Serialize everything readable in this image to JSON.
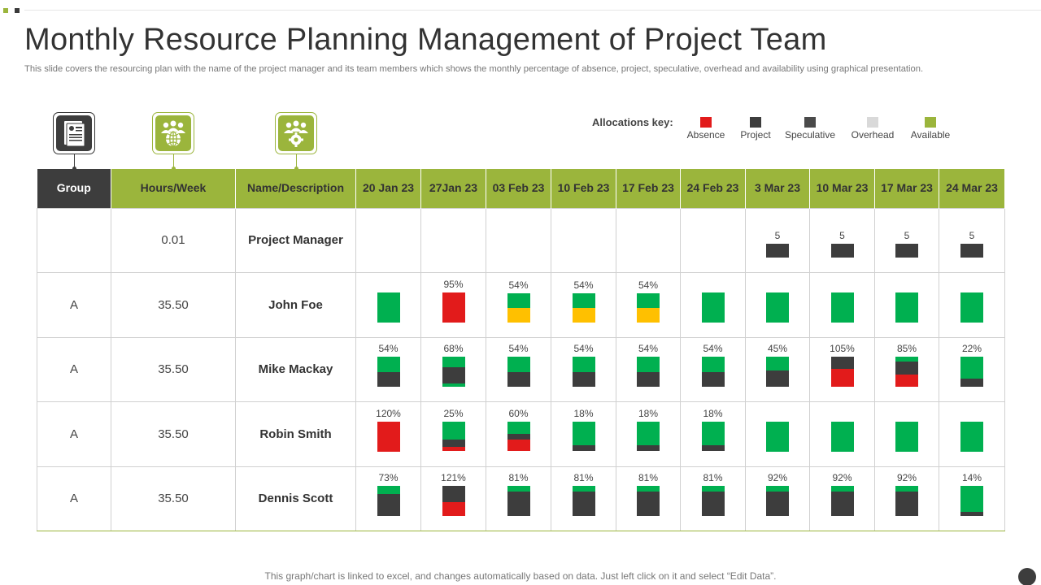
{
  "title": "Monthly Resource Planning Management of Project Team",
  "subtitle": "This slide covers the resourcing plan with the name of the project manager and its team members which shows the monthly percentage of absence, project, speculative, overhead and availability using graphical presentation.",
  "header_icons": [
    "document-icon",
    "team-globe-icon",
    "team-settings-icon"
  ],
  "allocation_key": {
    "label": "Allocations key:",
    "items": [
      {
        "name": "Absence",
        "color": "#e21b1b"
      },
      {
        "name": "Project",
        "color": "#3d3d3d"
      },
      {
        "name": "Speculative",
        "color": "#4a4a4a"
      },
      {
        "name": "Overhead",
        "color": "#d9d9d9"
      },
      {
        "name": "Available",
        "color": "#9bb53c"
      }
    ]
  },
  "colors": {
    "accent": "#9bb53c",
    "dark": "#3d3d3d",
    "segments": {
      "green": "#00b050",
      "dark": "#3d3d3d",
      "red": "#e21b1b",
      "yellow": "#ffc000"
    }
  },
  "table": {
    "columns": [
      "Group",
      "Hours/Week",
      "Name/Description",
      "20 Jan 23",
      "27Jan 23",
      "03 Feb 23",
      "10 Feb 23",
      "17 Feb 23",
      "24 Feb 23",
      "3 Mar 23",
      "10 Mar 23",
      "17 Mar 23",
      "24 Mar 23"
    ],
    "rows": [
      {
        "group": "",
        "hours": "0.01",
        "name": "Project Manager",
        "cells": [
          null,
          null,
          null,
          null,
          null,
          null,
          {
            "label": "5",
            "segments": [
              {
                "c": "dark",
                "v": 0.45
              }
            ]
          },
          {
            "label": "5",
            "segments": [
              {
                "c": "dark",
                "v": 0.45
              }
            ]
          },
          {
            "label": "5",
            "segments": [
              {
                "c": "dark",
                "v": 0.45
              }
            ]
          },
          {
            "label": "5",
            "segments": [
              {
                "c": "dark",
                "v": 0.45
              }
            ]
          }
        ]
      },
      {
        "group": "A",
        "hours": "35.50",
        "name": "John Foe",
        "cells": [
          {
            "label": "",
            "segments": [
              {
                "c": "green",
                "v": 1.0
              }
            ]
          },
          {
            "label": "95%",
            "segments": [
              {
                "c": "red",
                "v": 1.0
              }
            ]
          },
          {
            "label": "54%",
            "segments": [
              {
                "c": "green",
                "v": 0.5
              },
              {
                "c": "yellow",
                "v": 0.46
              }
            ]
          },
          {
            "label": "54%",
            "segments": [
              {
                "c": "green",
                "v": 0.5
              },
              {
                "c": "yellow",
                "v": 0.46
              }
            ]
          },
          {
            "label": "54%",
            "segments": [
              {
                "c": "green",
                "v": 0.5
              },
              {
                "c": "yellow",
                "v": 0.46
              }
            ]
          },
          {
            "label": "",
            "segments": [
              {
                "c": "green",
                "v": 1.0
              }
            ]
          },
          {
            "label": "",
            "segments": [
              {
                "c": "green",
                "v": 1.0
              }
            ]
          },
          {
            "label": "",
            "segments": [
              {
                "c": "green",
                "v": 1.0
              }
            ]
          },
          {
            "label": "",
            "segments": [
              {
                "c": "green",
                "v": 1.0
              }
            ]
          },
          {
            "label": "",
            "segments": [
              {
                "c": "green",
                "v": 1.0
              }
            ]
          }
        ]
      },
      {
        "group": "A",
        "hours": "35.50",
        "name": "Mike Mackay",
        "cells": [
          {
            "label": "54%",
            "segments": [
              {
                "c": "green",
                "v": 0.5
              },
              {
                "c": "dark",
                "v": 0.5
              }
            ]
          },
          {
            "label": "68%",
            "segments": [
              {
                "c": "green",
                "v": 0.35
              },
              {
                "c": "dark",
                "v": 0.55
              },
              {
                "c": "green",
                "v": 0.1
              }
            ]
          },
          {
            "label": "54%",
            "segments": [
              {
                "c": "green",
                "v": 0.5
              },
              {
                "c": "dark",
                "v": 0.5
              }
            ]
          },
          {
            "label": "54%",
            "segments": [
              {
                "c": "green",
                "v": 0.5
              },
              {
                "c": "dark",
                "v": 0.5
              }
            ]
          },
          {
            "label": "54%",
            "segments": [
              {
                "c": "green",
                "v": 0.5
              },
              {
                "c": "dark",
                "v": 0.5
              }
            ]
          },
          {
            "label": "54%",
            "segments": [
              {
                "c": "green",
                "v": 0.5
              },
              {
                "c": "dark",
                "v": 0.5
              }
            ]
          },
          {
            "label": "45%",
            "segments": [
              {
                "c": "green",
                "v": 0.45
              },
              {
                "c": "dark",
                "v": 0.55
              }
            ]
          },
          {
            "label": "105%",
            "segments": [
              {
                "c": "dark",
                "v": 0.4
              },
              {
                "c": "red",
                "v": 0.6
              }
            ]
          },
          {
            "label": "85%",
            "segments": [
              {
                "c": "green",
                "v": 0.15
              },
              {
                "c": "dark",
                "v": 0.45
              },
              {
                "c": "red",
                "v": 0.4
              }
            ]
          },
          {
            "label": "22%",
            "segments": [
              {
                "c": "green",
                "v": 0.72
              },
              {
                "c": "dark",
                "v": 0.28
              }
            ]
          }
        ]
      },
      {
        "group": "A",
        "hours": "35.50",
        "name": "Robin Smith",
        "cells": [
          {
            "label": "120%",
            "segments": [
              {
                "c": "red",
                "v": 1.0
              }
            ]
          },
          {
            "label": "25%",
            "segments": [
              {
                "c": "green",
                "v": 0.62
              },
              {
                "c": "dark",
                "v": 0.23
              },
              {
                "c": "red",
                "v": 0.15
              }
            ]
          },
          {
            "label": "60%",
            "segments": [
              {
                "c": "green",
                "v": 0.42
              },
              {
                "c": "dark",
                "v": 0.18
              },
              {
                "c": "red",
                "v": 0.4
              }
            ]
          },
          {
            "label": "18%",
            "segments": [
              {
                "c": "green",
                "v": 0.8
              },
              {
                "c": "dark",
                "v": 0.2
              }
            ]
          },
          {
            "label": "18%",
            "segments": [
              {
                "c": "green",
                "v": 0.8
              },
              {
                "c": "dark",
                "v": 0.2
              }
            ]
          },
          {
            "label": "18%",
            "segments": [
              {
                "c": "green",
                "v": 0.8
              },
              {
                "c": "dark",
                "v": 0.2
              }
            ]
          },
          {
            "label": "",
            "segments": [
              {
                "c": "green",
                "v": 1.0
              }
            ]
          },
          {
            "label": "",
            "segments": [
              {
                "c": "green",
                "v": 1.0
              }
            ]
          },
          {
            "label": "",
            "segments": [
              {
                "c": "green",
                "v": 1.0
              }
            ]
          },
          {
            "label": "",
            "segments": [
              {
                "c": "green",
                "v": 1.0
              }
            ]
          }
        ]
      },
      {
        "group": "A",
        "hours": "35.50",
        "name": "Dennis Scott",
        "cells": [
          {
            "label": "73%",
            "segments": [
              {
                "c": "green",
                "v": 0.27
              },
              {
                "c": "dark",
                "v": 0.73
              }
            ]
          },
          {
            "label": "121%",
            "segments": [
              {
                "c": "dark",
                "v": 0.55
              },
              {
                "c": "red",
                "v": 0.45
              }
            ]
          },
          {
            "label": "81%",
            "segments": [
              {
                "c": "green",
                "v": 0.2
              },
              {
                "c": "dark",
                "v": 0.8
              }
            ]
          },
          {
            "label": "81%",
            "segments": [
              {
                "c": "green",
                "v": 0.2
              },
              {
                "c": "dark",
                "v": 0.8
              }
            ]
          },
          {
            "label": "81%",
            "segments": [
              {
                "c": "green",
                "v": 0.2
              },
              {
                "c": "dark",
                "v": 0.8
              }
            ]
          },
          {
            "label": "81%",
            "segments": [
              {
                "c": "green",
                "v": 0.2
              },
              {
                "c": "dark",
                "v": 0.8
              }
            ]
          },
          {
            "label": "92%",
            "segments": [
              {
                "c": "green",
                "v": 0.18
              },
              {
                "c": "dark",
                "v": 0.82
              }
            ]
          },
          {
            "label": "92%",
            "segments": [
              {
                "c": "green",
                "v": 0.18
              },
              {
                "c": "dark",
                "v": 0.82
              }
            ]
          },
          {
            "label": "92%",
            "segments": [
              {
                "c": "green",
                "v": 0.18
              },
              {
                "c": "dark",
                "v": 0.82
              }
            ]
          },
          {
            "label": "14%",
            "segments": [
              {
                "c": "green",
                "v": 0.86
              },
              {
                "c": "dark",
                "v": 0.14
              }
            ]
          }
        ]
      }
    ]
  },
  "footer": "This graph/chart is linked to excel,  and changes automatically based on data. Just left click on it and select “Edit Data”."
}
